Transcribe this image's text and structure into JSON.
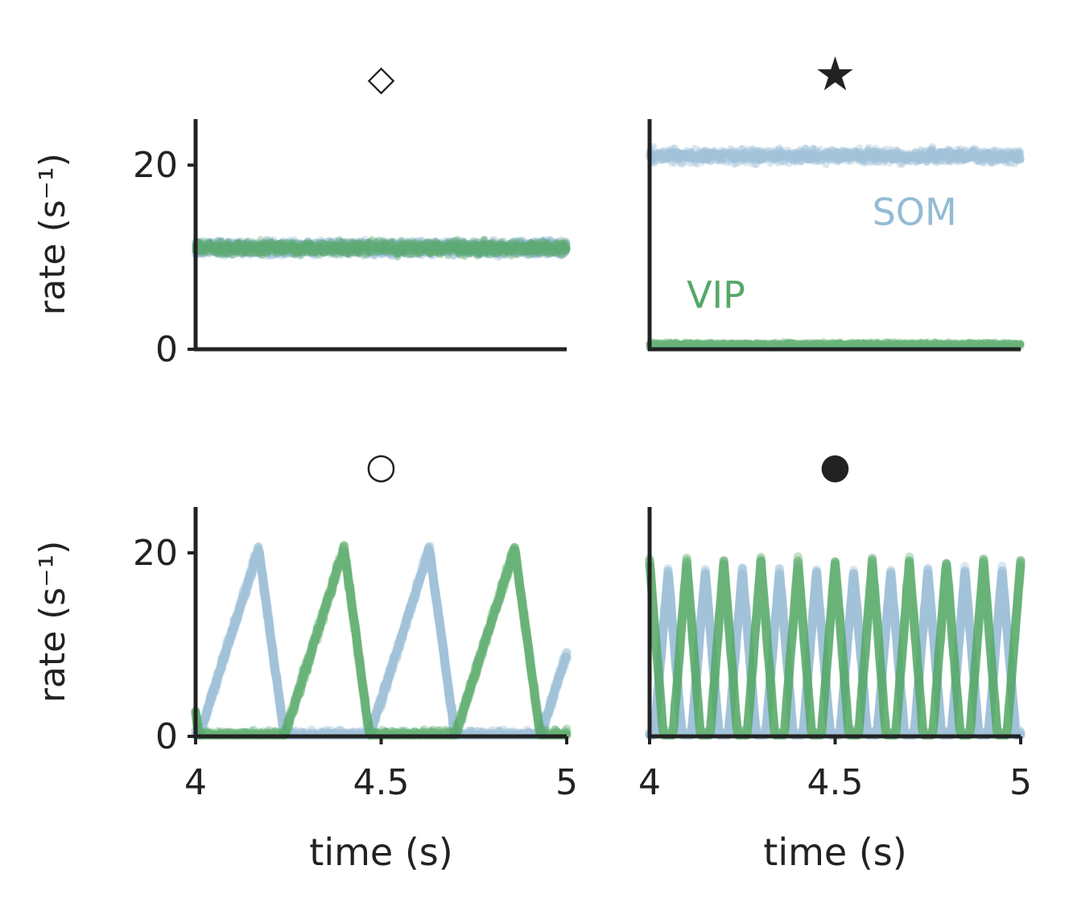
{
  "colors": {
    "som": "#94bbd4",
    "vip": "#55a868",
    "pv": "#9bb6e0",
    "axis": "#222222"
  },
  "chart_data": [
    {
      "type": "line",
      "marker_title": "◇",
      "ylabel": "rate (s⁻¹)",
      "xlabel": "",
      "xlim": [
        4,
        5
      ],
      "ylim": [
        0,
        25
      ],
      "yticks": [
        "0",
        "20"
      ],
      "xticks": [],
      "annotations": [],
      "series": [
        {
          "color_key": "som",
          "pattern": "flat",
          "level": 11
        },
        {
          "color_key": "pv",
          "pattern": "flat",
          "level": 11
        },
        {
          "color_key": "vip",
          "pattern": "flat",
          "level": 11
        }
      ]
    },
    {
      "type": "line",
      "marker_title": "★",
      "ylabel": "",
      "xlabel": "",
      "xlim": [
        4,
        5
      ],
      "ylim": [
        0,
        25
      ],
      "yticks": [],
      "xticks": [],
      "annotations": [
        {
          "text": "SOM",
          "color_key": "som",
          "x": 4.6,
          "y": 13.5
        },
        {
          "text": "VIP",
          "color_key": "vip",
          "x": 4.1,
          "y": 4.5
        }
      ],
      "series": [
        {
          "color_key": "som",
          "pattern": "flat",
          "level": 21
        },
        {
          "color_key": "vip",
          "pattern": "flat",
          "level": 0.5
        }
      ]
    },
    {
      "type": "line",
      "marker_title": "○",
      "ylabel": "rate (s⁻¹)",
      "xlabel": "time (s)",
      "xlim": [
        4,
        5
      ],
      "ylim": [
        0,
        25
      ],
      "yticks": [
        "0",
        "20"
      ],
      "xticks": [
        "4",
        "4.5",
        "5"
      ],
      "annotations": [],
      "series": [
        {
          "color_key": "som",
          "pattern": "osc",
          "period": 0.46,
          "peak": 20.5,
          "peak_x": 4.17,
          "duty": 0.5,
          "skew": 0.7
        },
        {
          "color_key": "vip",
          "pattern": "osc",
          "period": 0.46,
          "peak": 20.5,
          "peak_x": 4.4,
          "duty": 0.5,
          "skew": 0.7
        }
      ]
    },
    {
      "type": "line",
      "marker_title": "●",
      "ylabel": "",
      "xlabel": "time (s)",
      "xlim": [
        4,
        5
      ],
      "ylim": [
        0,
        25
      ],
      "yticks": [],
      "xticks": [
        "4",
        "4.5",
        "5"
      ],
      "annotations": [],
      "series": [
        {
          "color_key": "som",
          "pattern": "osc",
          "period": 0.1,
          "peak": 18,
          "peak_x": 4.05,
          "duty": 0.75,
          "skew": 0.5
        },
        {
          "color_key": "vip",
          "pattern": "osc",
          "period": 0.1,
          "peak": 19,
          "peak_x": 4.1,
          "duty": 0.75,
          "skew": 0.5
        }
      ]
    }
  ]
}
